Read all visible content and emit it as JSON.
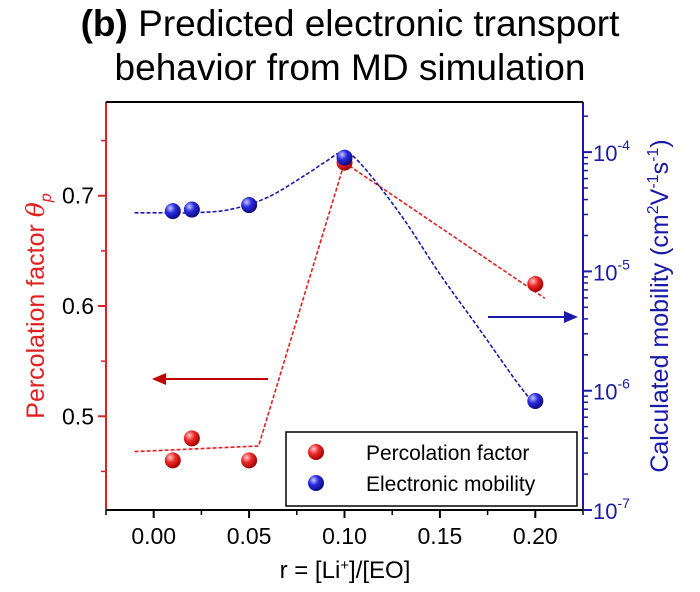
{
  "title_prefix": "(b)",
  "title_line1": " Predicted electronic transport",
  "title_line2": "behavior from MD simulation",
  "colors": {
    "left_axis": "#e02020",
    "right_axis": "#1a1aa8",
    "frame": "#000000"
  },
  "chart_data": {
    "type": "scatter",
    "x_axis": {
      "label_parts": [
        "r = [Li",
        "+",
        "]/[EO]"
      ],
      "range": [
        -0.025,
        0.225
      ],
      "ticks": [
        0.0,
        0.05,
        0.1,
        0.15,
        0.2
      ],
      "tick_labels": [
        "0.00",
        "0.05",
        "0.10",
        "0.15",
        "0.20"
      ]
    },
    "y_left": {
      "label_parts": [
        "Percolation factor ",
        "θ",
        "p"
      ],
      "range": [
        0.415,
        0.785
      ],
      "ticks": [
        0.5,
        0.6,
        0.7
      ],
      "tick_labels": [
        "0.5",
        "0.6",
        "0.7"
      ],
      "color": "#e02020"
    },
    "y_right": {
      "label_parts": [
        "Calculated mobility (cm",
        "2",
        "V",
        "-1",
        "s",
        "-1",
        ")"
      ],
      "scale": "log",
      "range_log10": [
        -7,
        -3.58
      ],
      "ticks_log10": [
        -7,
        -6,
        -5,
        -4
      ],
      "tick_labels": [
        {
          "base": "10",
          "exp": "-7"
        },
        {
          "base": "10",
          "exp": "-6"
        },
        {
          "base": "10",
          "exp": "-5"
        },
        {
          "base": "10",
          "exp": "-4"
        }
      ],
      "color": "#1a1aa8"
    },
    "series": [
      {
        "name": "Percolation factor",
        "axis": "left",
        "color": "#e02020",
        "points": [
          {
            "x": 0.01,
            "y": 0.46
          },
          {
            "x": 0.02,
            "y": 0.48
          },
          {
            "x": 0.05,
            "y": 0.46
          },
          {
            "x": 0.1,
            "y": 0.73
          },
          {
            "x": 0.2,
            "y": 0.62
          }
        ],
        "fit": [
          {
            "x": -0.01,
            "y": 0.468
          },
          {
            "x": 0.055,
            "y": 0.473
          },
          {
            "x": 0.1,
            "y": 0.73
          },
          {
            "x": 0.205,
            "y": 0.607
          }
        ]
      },
      {
        "name": "Electronic mobility",
        "axis": "right",
        "color": "#1a1aa8",
        "points": [
          {
            "x": 0.01,
            "y": 3.2e-05
          },
          {
            "x": 0.02,
            "y": 3.3e-05
          },
          {
            "x": 0.05,
            "y": 3.6e-05
          },
          {
            "x": 0.1,
            "y": 9e-05
          },
          {
            "x": 0.2,
            "y": 8.2e-07
          }
        ],
        "fit": [
          {
            "x": -0.01,
            "y": 3.1e-05
          },
          {
            "x": 0.0,
            "y": 3.1e-05
          },
          {
            "x": 0.02,
            "y": 3.1e-05
          },
          {
            "x": 0.04,
            "y": 3.3e-05
          },
          {
            "x": 0.06,
            "y": 4.2e-05
          },
          {
            "x": 0.08,
            "y": 6.5e-05
          },
          {
            "x": 0.09,
            "y": 8.3e-05
          },
          {
            "x": 0.1,
            "y": 0.0001
          },
          {
            "x": 0.11,
            "y": 7.5e-05
          },
          {
            "x": 0.13,
            "y": 2.9e-05
          },
          {
            "x": 0.15,
            "y": 9.5e-06
          },
          {
            "x": 0.17,
            "y": 3.4e-06
          },
          {
            "x": 0.19,
            "y": 1.2e-06
          },
          {
            "x": 0.2,
            "y": 7.5e-07
          }
        ]
      }
    ],
    "legend": {
      "position": "bottom-right",
      "entries": [
        "Percolation factor",
        "Electronic mobility"
      ]
    },
    "grid": false
  }
}
